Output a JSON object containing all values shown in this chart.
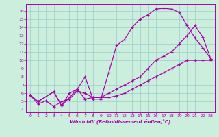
{
  "xlabel": "Windchill (Refroidissement éolien,°C)",
  "bg_color": "#cceedd",
  "line_color": "#aa00aa",
  "grid_color": "#99cccc",
  "xlim": [
    -0.5,
    23.5
  ],
  "ylim": [
    3.7,
    16.8
  ],
  "yticks": [
    4,
    5,
    6,
    7,
    8,
    9,
    10,
    11,
    12,
    13,
    14,
    15,
    16
  ],
  "xticks": [
    0,
    1,
    2,
    3,
    4,
    5,
    6,
    7,
    8,
    9,
    10,
    11,
    12,
    13,
    14,
    15,
    16,
    17,
    18,
    19,
    20,
    21,
    22,
    23
  ],
  "line1_x": [
    0,
    1,
    2,
    3,
    4,
    5,
    6,
    7,
    8,
    9,
    10,
    11,
    12,
    13,
    14,
    15,
    16,
    17,
    18,
    19,
    20,
    21,
    22,
    23
  ],
  "line1_y": [
    5.8,
    4.7,
    5.1,
    4.4,
    5.0,
    5.3,
    6.3,
    6.0,
    5.5,
    5.5,
    5.5,
    5.7,
    6.0,
    6.5,
    7.0,
    7.5,
    8.0,
    8.5,
    9.0,
    9.5,
    10.0,
    10.0,
    10.0,
    10.0
  ],
  "line2_x": [
    0,
    1,
    3,
    4,
    6,
    7,
    8,
    9,
    10,
    11,
    12,
    13,
    14,
    15,
    16,
    17,
    18,
    19,
    20,
    21,
    22,
    23
  ],
  "line2_y": [
    5.8,
    5.0,
    6.2,
    4.5,
    6.5,
    8.0,
    5.3,
    5.3,
    8.5,
    11.8,
    12.5,
    14.0,
    15.0,
    15.5,
    16.2,
    16.3,
    16.2,
    15.8,
    14.2,
    12.7,
    11.5,
    10.2
  ],
  "line3_x": [
    0,
    1,
    3,
    4,
    5,
    6,
    7,
    8,
    9,
    10,
    11,
    12,
    13,
    14,
    15,
    16,
    17,
    18,
    19,
    20,
    21,
    22,
    23
  ],
  "line3_y": [
    5.8,
    5.0,
    6.2,
    4.5,
    6.0,
    6.5,
    5.3,
    5.5,
    5.5,
    6.0,
    6.5,
    7.0,
    7.5,
    8.0,
    9.0,
    10.0,
    10.5,
    11.0,
    12.0,
    13.0,
    14.2,
    12.8,
    10.2
  ]
}
